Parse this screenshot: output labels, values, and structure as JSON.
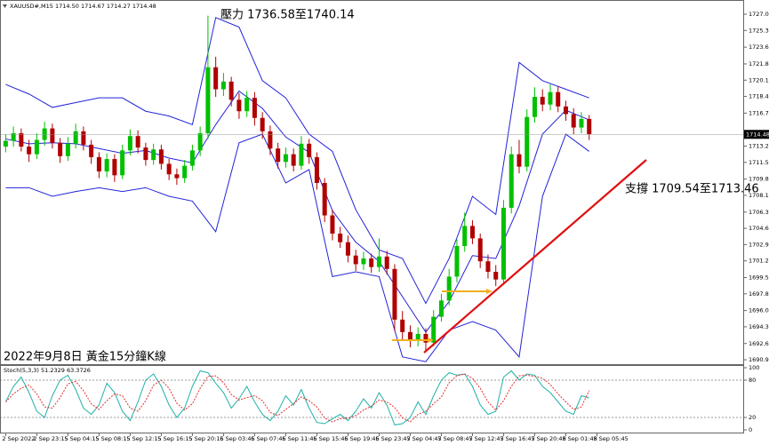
{
  "chart_data": [
    {
      "type": "candlestick",
      "header": "XAUUSD#,M15  1714.50 1714.67 1714.27 1714.48",
      "annotations": [
        "壓力 1736.58至1740.14",
        "支撐 1709.54至1713.46",
        "2022年9月8日 黃金15分鐘K線"
      ],
      "xlim": [
        -0.5,
        94.8
      ],
      "xticks": [
        {
          "value": 0,
          "label": "2 Sep 2022"
        },
        {
          "value": 4,
          "label": "2 Sep 23:15"
        },
        {
          "value": 8,
          "label": "5 Sep 04:15"
        },
        {
          "value": 12,
          "label": "5 Sep 08:15"
        },
        {
          "value": 16,
          "label": "5 Sep 12:15"
        },
        {
          "value": 20,
          "label": "5 Sep 16:15"
        },
        {
          "value": 24,
          "label": "5 Sep 20:15"
        },
        {
          "value": 28,
          "label": "6 Sep 03:45"
        },
        {
          "value": 32,
          "label": "6 Sep 07:45"
        },
        {
          "value": 36,
          "label": "6 Sep 11:45"
        },
        {
          "value": 40,
          "label": "6 Sep 15:45"
        },
        {
          "value": 44,
          "label": "6 Sep 19:45"
        },
        {
          "value": 48,
          "label": "6 Sep 23:45"
        },
        {
          "value": 52,
          "label": "7 Sep 04:45"
        },
        {
          "value": 56,
          "label": "7 Sep 08:45"
        },
        {
          "value": 60,
          "label": "7 Sep 12:45"
        },
        {
          "value": 64,
          "label": "7 Sep 16:45"
        },
        {
          "value": 68,
          "label": "7 Sep 20:45"
        },
        {
          "value": 72,
          "label": "8 Sep 01:45"
        },
        {
          "value": 76,
          "label": "8 Sep 05:45"
        }
      ],
      "ylim": [
        1690.44,
        1728.35
      ],
      "yticks": [
        1727.05,
        1725.35,
        {
          "value": 1723.6,
          "label": "1723.60"
        },
        1721.85,
        1720.15,
        1718.45,
        {
          "value": 1716.7,
          "label": "1716.70"
        },
        1713.25,
        1711.55,
        {
          "value": 1709.8,
          "label": "1709.80"
        },
        {
          "value": 1708.1,
          "label": "1708.10"
        },
        1706.35,
        1704.65,
        1702.95,
        1701.25,
        {
          "value": 1699.5,
          "label": "1699.50"
        },
        {
          "value": 1697.8,
          "label": "1697.80"
        },
        1696.05,
        1694.35,
        {
          "value": 1692.6,
          "label": "1692.60"
        },
        {
          "value": 1690.9,
          "label": "1690.90"
        }
      ],
      "last_price": 1714.48,
      "up_color": "#00c000",
      "down_color": "#b00000",
      "open": [
        1713.2,
        1713.8,
        1714.6,
        1713.2,
        1712.4,
        1713.9,
        1715.1,
        1713.6,
        1712.2,
        1713.5,
        1714.8,
        1713.4,
        1712.1,
        1710.6,
        1711.9,
        1710.2,
        1712.8,
        1714.3,
        1713.1,
        1711.8,
        1712.9,
        1711.4,
        1710.3,
        1709.9,
        1711.2,
        1712.8,
        1714.6,
        1721.5,
        1719.2,
        1720.0,
        1718.1,
        1716.9,
        1718.3,
        1716.2,
        1714.8,
        1713.0,
        1711.6,
        1712.4,
        1711.2,
        1713.5,
        1712.1,
        1709.4,
        1706.0,
        1704.1,
        1703.2,
        1701.8,
        1700.9,
        1701.5,
        1700.6,
        1701.7,
        1700.4,
        1695.1,
        1693.8,
        1692.9,
        1693.6,
        1692.7,
        1695.4,
        1697.1,
        1699.6,
        1702.8,
        1704.9,
        1703.6,
        1701.2,
        1700.1,
        1699.3,
        1706.8,
        1712.4,
        1711.1,
        1716.3,
        1718.4,
        1717.6,
        1718.9,
        1717.4,
        1716.6,
        1715.2,
        1716.1
      ],
      "high": [
        1714.5,
        1715.3,
        1715.1,
        1713.9,
        1714.6,
        1715.8,
        1715.6,
        1714.1,
        1714.2,
        1715.6,
        1715.3,
        1713.9,
        1712.6,
        1712.5,
        1712.4,
        1713.4,
        1715.0,
        1714.9,
        1713.6,
        1713.5,
        1713.4,
        1711.9,
        1710.9,
        1711.8,
        1713.4,
        1715.3,
        1726.9,
        1722.6,
        1720.9,
        1720.5,
        1718.8,
        1719.0,
        1718.9,
        1716.8,
        1715.4,
        1713.6,
        1713.1,
        1713.0,
        1714.3,
        1714.0,
        1712.6,
        1709.9,
        1706.6,
        1704.8,
        1703.9,
        1702.4,
        1702.2,
        1702.0,
        1703.6,
        1702.3,
        1700.9,
        1696.0,
        1694.5,
        1694.3,
        1694.2,
        1696.1,
        1697.8,
        1700.4,
        1703.5,
        1706.3,
        1705.5,
        1704.1,
        1701.9,
        1700.8,
        1707.6,
        1713.2,
        1713.9,
        1717.1,
        1719.4,
        1719.2,
        1719.7,
        1719.5,
        1718.0,
        1717.2,
        1716.8,
        1716.5
      ],
      "low": [
        1712.6,
        1713.2,
        1712.7,
        1711.6,
        1711.9,
        1713.3,
        1713.0,
        1711.5,
        1711.7,
        1713.0,
        1712.8,
        1711.4,
        1709.9,
        1710.0,
        1709.5,
        1709.8,
        1712.3,
        1712.5,
        1711.2,
        1711.3,
        1710.8,
        1709.7,
        1709.2,
        1709.4,
        1710.7,
        1712.2,
        1714.0,
        1718.4,
        1718.5,
        1717.4,
        1716.1,
        1716.3,
        1715.4,
        1714.0,
        1712.3,
        1710.9,
        1711.0,
        1710.6,
        1710.8,
        1711.4,
        1708.7,
        1705.3,
        1703.4,
        1702.6,
        1701.1,
        1700.2,
        1700.3,
        1700.0,
        1700.1,
        1699.8,
        1693.9,
        1693.0,
        1692.2,
        1692.3,
        1691.9,
        1692.3,
        1694.9,
        1696.6,
        1699.0,
        1702.2,
        1703.0,
        1700.5,
        1699.4,
        1698.6,
        1698.9,
        1706.2,
        1710.4,
        1710.6,
        1715.7,
        1716.9,
        1717.0,
        1716.8,
        1715.9,
        1714.5,
        1714.6,
        1713.9
      ],
      "close": [
        1713.8,
        1714.6,
        1713.2,
        1712.4,
        1713.9,
        1715.1,
        1713.6,
        1712.2,
        1713.5,
        1714.8,
        1713.4,
        1712.1,
        1710.6,
        1711.9,
        1710.2,
        1712.8,
        1714.3,
        1713.1,
        1711.8,
        1712.9,
        1711.4,
        1710.3,
        1709.9,
        1711.2,
        1712.8,
        1714.6,
        1721.5,
        1719.2,
        1720.0,
        1718.1,
        1716.9,
        1718.3,
        1716.2,
        1714.8,
        1713.0,
        1711.6,
        1712.4,
        1711.2,
        1713.5,
        1712.1,
        1709.4,
        1706.0,
        1704.1,
        1703.2,
        1701.8,
        1700.9,
        1701.5,
        1700.6,
        1701.7,
        1700.4,
        1695.1,
        1693.8,
        1692.9,
        1693.6,
        1692.7,
        1695.4,
        1697.1,
        1699.6,
        1702.8,
        1704.9,
        1703.6,
        1701.2,
        1700.1,
        1699.3,
        1706.8,
        1712.4,
        1711.1,
        1716.3,
        1718.4,
        1717.6,
        1718.9,
        1717.4,
        1716.6,
        1715.2,
        1716.1,
        1714.48
      ],
      "band_x": [
        0,
        3,
        6,
        9,
        12,
        15,
        18,
        21,
        24,
        27,
        30,
        33,
        36,
        39,
        42,
        45,
        48,
        51,
        54,
        57,
        60,
        63,
        66,
        69,
        72,
        75
      ],
      "bands": [
        {
          "color": "#2323d8",
          "values": [
            1719.7,
            1718.7,
            1717.3,
            1717.8,
            1718.3,
            1718.3,
            1716.9,
            1716.4,
            1715.5,
            1726.7,
            1725.7,
            1720.1,
            1718.3,
            1714.5,
            1712.7,
            1706.6,
            1702.4,
            1701.5,
            1696.8,
            1701.5,
            1708.0,
            1706.1,
            1722.0,
            1720.1,
            1719.2,
            1718.3
          ]
        },
        {
          "color": "#2323d8",
          "values": [
            1714.0,
            1713.5,
            1713.6,
            1713.5,
            1713.0,
            1712.5,
            1712.8,
            1712.0,
            1711.5,
            1715.5,
            1719.0,
            1717.2,
            1714.2,
            1712.6,
            1706.5,
            1703.2,
            1701.2,
            1697.5,
            1693.8,
            1697.0,
            1701.8,
            1701.5,
            1707.0,
            1714.5,
            1717.0,
            1716.0
          ]
        },
        {
          "color": "#2323d8",
          "values": [
            1708.9,
            1708.9,
            1708.0,
            1708.5,
            1708.9,
            1708.5,
            1708.9,
            1708.0,
            1707.5,
            1704.3,
            1713.6,
            1714.5,
            1709.4,
            1710.8,
            1699.6,
            1700.1,
            1699.6,
            1691.2,
            1690.7,
            1694.0,
            1694.9,
            1694.0,
            1691.2,
            1708.0,
            1714.5,
            1712.7
          ]
        }
      ]
    },
    {
      "type": "line",
      "header": "Stoch(5,3,3) 51.2329 63.3726",
      "ylim": [
        0,
        100
      ],
      "yticks": [
        0,
        20,
        80,
        100
      ],
      "series": [
        {
          "color": "#20b2aa",
          "values": [
            45,
            70,
            85,
            60,
            30,
            20,
            55,
            80,
            88,
            65,
            35,
            25,
            40,
            75,
            60,
            30,
            15,
            45,
            80,
            90,
            70,
            40,
            20,
            35,
            70,
            95,
            92,
            75,
            60,
            35,
            50,
            70,
            45,
            25,
            15,
            30,
            55,
            40,
            65,
            35,
            12,
            10,
            18,
            25,
            15,
            30,
            50,
            35,
            60,
            40,
            8,
            10,
            20,
            45,
            25,
            55,
            80,
            92,
            88,
            90,
            70,
            40,
            25,
            30,
            85,
            95,
            80,
            90,
            88,
            70,
            60,
            45,
            30,
            25,
            55,
            51.2329
          ]
        },
        {
          "color": "#e03030",
          "values": [
            45,
            58,
            67,
            72,
            58,
            37,
            35,
            52,
            74,
            78,
            63,
            42,
            33,
            47,
            58,
            55,
            35,
            30,
            47,
            72,
            80,
            67,
            43,
            32,
            42,
            67,
            86,
            87,
            76,
            57,
            48,
            52,
            55,
            47,
            28,
            23,
            33,
            42,
            53,
            47,
            37,
            19,
            13,
            18,
            19,
            23,
            32,
            38,
            48,
            45,
            36,
            19,
            13,
            25,
            30,
            42,
            53,
            76,
            87,
            90,
            83,
            67,
            45,
            32,
            47,
            70,
            87,
            88,
            86,
            83,
            73,
            58,
            45,
            33,
            37,
            63.3726
          ]
        }
      ]
    }
  ]
}
